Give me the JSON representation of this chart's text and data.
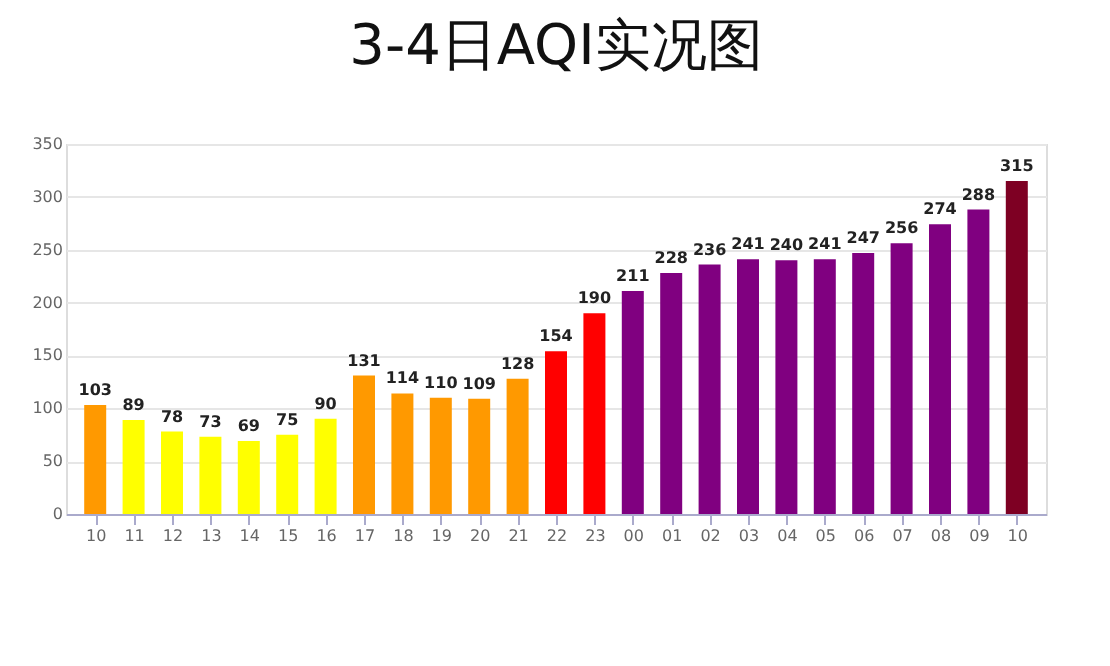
{
  "chart_data": {
    "type": "bar",
    "title": "3-4日AQI实况图",
    "categories": [
      "10",
      "11",
      "12",
      "13",
      "14",
      "15",
      "16",
      "17",
      "18",
      "19",
      "20",
      "21",
      "22",
      "23",
      "00",
      "01",
      "02",
      "03",
      "04",
      "05",
      "06",
      "07",
      "08",
      "09",
      "10"
    ],
    "values": [
      103,
      89,
      78,
      73,
      69,
      75,
      90,
      131,
      114,
      110,
      109,
      128,
      154,
      190,
      211,
      228,
      236,
      241,
      240,
      241,
      247,
      256,
      274,
      288,
      315
    ],
    "colors": [
      "#ff9900",
      "#ffff00",
      "#ffff00",
      "#ffff00",
      "#ffff00",
      "#ffff00",
      "#ffff00",
      "#ff9900",
      "#ff9900",
      "#ff9900",
      "#ff9900",
      "#ff9900",
      "#ff0000",
      "#ff0000",
      "#800080",
      "#800080",
      "#800080",
      "#800080",
      "#800080",
      "#800080",
      "#800080",
      "#800080",
      "#800080",
      "#800080",
      "#7e0023"
    ],
    "ylim": [
      0,
      350
    ],
    "yticks": [
      0,
      50,
      100,
      150,
      200,
      250,
      300,
      350
    ],
    "grid": "y",
    "data_labels": true
  }
}
